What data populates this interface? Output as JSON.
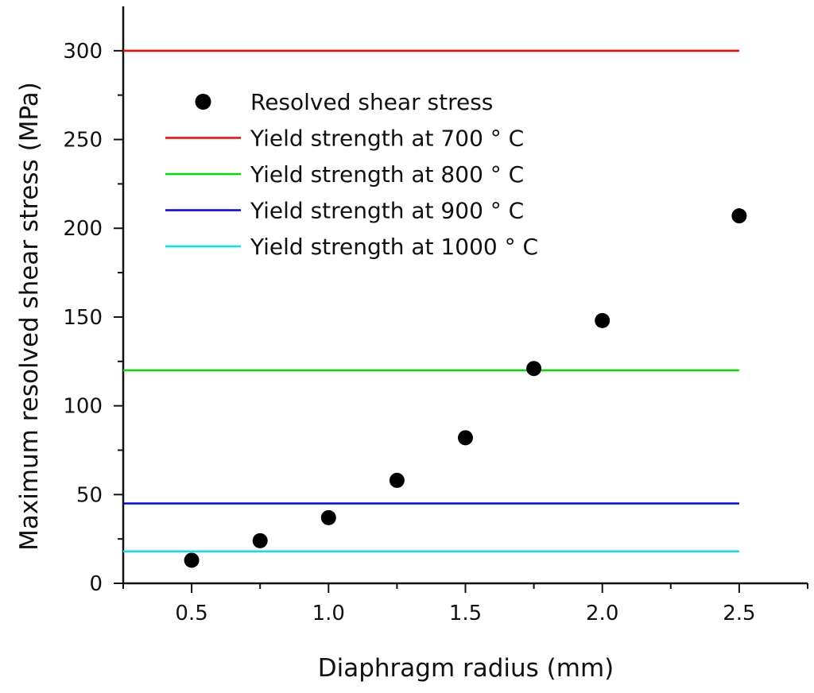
{
  "chart_data": {
    "type": "scatter",
    "title": "",
    "xlabel": "Diaphragm radius (mm)",
    "ylabel": "Maximum resolved shear stress (MPa)",
    "xlim": [
      0.25,
      2.75
    ],
    "ylim": [
      0,
      325
    ],
    "xticks": [
      0.5,
      1.0,
      1.5,
      2.0,
      2.5
    ],
    "xtick_labels": [
      "0.5",
      "1.0",
      "1.5",
      "2.0",
      "2.5"
    ],
    "yticks": [
      0,
      50,
      100,
      150,
      200,
      250,
      300
    ],
    "ytick_labels": [
      "0",
      "50",
      "100",
      "150",
      "200",
      "250",
      "300"
    ],
    "grid": false,
    "legend_position": "top-left",
    "scatter_series": {
      "name": "Resolved shear stress",
      "color": "#000000",
      "x": [
        0.5,
        0.75,
        1.0,
        1.25,
        1.5,
        1.75,
        2.0,
        2.5
      ],
      "y": [
        13,
        24,
        37,
        58,
        82,
        121,
        148,
        207
      ]
    },
    "hlines": [
      {
        "name": "Yield strength at 700 ° C",
        "value": 300,
        "color": "#ff0000",
        "x_range": [
          0.25,
          2.5
        ]
      },
      {
        "name": "Yield strength at 800 ° C",
        "value": 120,
        "color": "#00dd00",
        "x_range": [
          0.25,
          2.5
        ]
      },
      {
        "name": "Yield strength at 900 ° C",
        "value": 45,
        "color": "#0000ff",
        "x_range": [
          0.25,
          2.5
        ]
      },
      {
        "name": "Yield strength at 1000 ° C",
        "value": 18,
        "color": "#00e5ee",
        "x_range": [
          0.25,
          2.5
        ]
      }
    ]
  }
}
